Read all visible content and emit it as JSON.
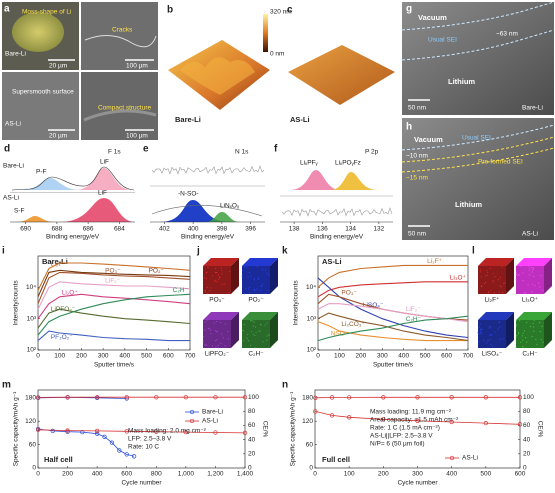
{
  "panels": {
    "a": {
      "label": "a",
      "images": [
        {
          "annotation": "Moss-shape of Li",
          "sample": "Bare-Li",
          "scale_bar": "20 µm"
        },
        {
          "annotation": "Cracks",
          "scale_bar": "100 µm"
        },
        {
          "annotation": "Supersmooth surface",
          "sample": "AS-Li",
          "scale_bar": "20 µm"
        },
        {
          "annotation": "Compact structure",
          "scale_bar": "100 µm"
        }
      ]
    },
    "b": {
      "label": "b",
      "sample": "Bare-Li",
      "colorbar_max": "320 nm",
      "colorbar_min": "0 nm"
    },
    "c": {
      "label": "c",
      "sample": "AS-Li"
    },
    "g": {
      "label": "g",
      "vacuum": "Vacuum",
      "sei": "Usual SEI",
      "thickness": "~63 nm",
      "lithium": "Lithium",
      "scale_bar": "50 nm",
      "sample": "Bare-Li"
    },
    "h": {
      "label": "h",
      "vacuum": "Vacuum",
      "sei": "Usual SEI",
      "thickness_1": "~10 nm",
      "thickness_2": "~15 nm",
      "preformed": "Pre-formed SEI",
      "lithium": "Lithium",
      "scale_bar": "50 nm",
      "sample": "AS-Li"
    },
    "d": {
      "type": "xps",
      "label": "d",
      "region": "F 1s",
      "samples": [
        "Bare-Li",
        "AS-Li"
      ],
      "peaks": [
        "P-F",
        "LiF",
        "LiF",
        "S-F"
      ],
      "xlabel": "Binding energy/eV",
      "xlim": [
        691,
        683
      ],
      "xticks": [
        690,
        688,
        686,
        684
      ]
    },
    "e": {
      "type": "xps",
      "label": "e",
      "region": "N 1s",
      "peaks": [
        "-N-SO-",
        "LiNₓOᵧ"
      ],
      "xlabel": "Binding energy/eV",
      "xlim": [
        403,
        395
      ],
      "xticks": [
        402,
        400,
        398,
        396
      ]
    },
    "f": {
      "type": "xps",
      "label": "f",
      "region": "P 2p",
      "peaks": [
        "LiₓPFᵧ",
        "LiₓPOᵧFz"
      ],
      "xlabel": "Binding energy/eV",
      "xlim": [
        139,
        131
      ],
      "xticks": [
        138,
        136,
        134,
        132
      ]
    },
    "i": {
      "type": "line",
      "label": "i",
      "sample": "Bare-Li",
      "xlabel": "Sputter time/s",
      "ylabel": "Intensity/counts",
      "log_y": true,
      "xlim": [
        0,
        700
      ],
      "xticks": [
        0,
        100,
        200,
        300,
        400,
        500,
        600,
        700
      ],
      "ylim": [
        100,
        100000
      ],
      "yticks": [
        {
          "value": 100,
          "label": "10²"
        },
        {
          "value": 1000,
          "label": "10³"
        },
        {
          "value": 10000,
          "label": "10⁴"
        }
      ],
      "x": [
        0,
        50,
        100,
        200,
        300,
        400,
        500,
        600,
        700
      ],
      "series": [
        {
          "name": "Li₂F⁺",
          "color": "#c8702a",
          "values": [
            8000,
            40000,
            60000,
            60000,
            55000,
            50000,
            45000,
            40000,
            35000
          ]
        },
        {
          "name": "PO₃⁻",
          "color": "#a0522d",
          "values": [
            3000,
            20000,
            30000,
            28000,
            25000,
            23000,
            22000,
            20000,
            18000
          ]
        },
        {
          "name": "PO₂⁻",
          "color": "#7a3a10",
          "values": [
            5000,
            30000,
            35000,
            30000,
            28000,
            26000,
            25000,
            24000,
            22000
          ]
        },
        {
          "name": "LiF₂⁻",
          "color": "#e6a0c8",
          "values": [
            2000,
            10000,
            15000,
            13000,
            12000,
            11000,
            11000,
            10000,
            9000
          ]
        },
        {
          "name": "Li₂O⁺",
          "color": "#d04080",
          "values": [
            1000,
            3000,
            5000,
            6000,
            5000,
            4500,
            4000,
            3500,
            3000
          ]
        },
        {
          "name": "LiPFO₂⁻",
          "color": "#556b2f",
          "values": [
            500,
            1500,
            2000,
            1500,
            1200,
            1000,
            900,
            800,
            700
          ]
        },
        {
          "name": "PF₂O₂⁻",
          "color": "#4060c0",
          "values": [
            200,
            400,
            350,
            300,
            250,
            230,
            220,
            200,
            200
          ]
        },
        {
          "name": "C₂H⁻",
          "color": "#2e8b57",
          "values": [
            300,
            800,
            1200,
            2000,
            3000,
            4000,
            5000,
            5500,
            6000
          ]
        }
      ]
    },
    "j": {
      "label": "j",
      "cubes": [
        {
          "name": "PO₃⁻",
          "color": "#8b1a1a"
        },
        {
          "name": "PO₂⁻",
          "color": "#1a2a9b"
        },
        {
          "name": "LiPFO₂⁻",
          "color": "#6a2a8a"
        },
        {
          "name": "C₂H⁻",
          "color": "#2a6a2a"
        }
      ]
    },
    "k": {
      "type": "line",
      "label": "k",
      "sample": "AS-Li",
      "xlabel": "Sputter time/s",
      "ylabel": "Intensity/counts",
      "log_y": true,
      "xlim": [
        0,
        700
      ],
      "xticks": [
        0,
        100,
        200,
        300,
        400,
        500,
        600,
        700
      ],
      "ylim": [
        100,
        100000
      ],
      "yticks": [
        {
          "value": 100,
          "label": "10²"
        },
        {
          "value": 1000,
          "label": "10³"
        },
        {
          "value": 10000,
          "label": "10⁴"
        }
      ],
      "x": [
        0,
        50,
        100,
        200,
        300,
        400,
        500,
        600,
        700
      ],
      "series": [
        {
          "name": "Li₂F⁺",
          "color": "#c8702a",
          "values": [
            10000,
            20000,
            30000,
            40000,
            45000,
            50000,
            50000,
            50000,
            50000
          ]
        },
        {
          "name": "Li₃O⁺",
          "color": "#d03030",
          "values": [
            5000,
            8000,
            10000,
            12000,
            13000,
            14000,
            15000,
            15000,
            15000
          ]
        },
        {
          "name": "LiSO₄⁻",
          "color": "#3040b0",
          "values": [
            20000,
            10000,
            5000,
            2000,
            1000,
            600,
            400,
            300,
            250
          ]
        },
        {
          "name": "PO₃⁻",
          "color": "#a0522d",
          "values": [
            3000,
            6000,
            5000,
            3000,
            2000,
            1500,
            1200,
            1000,
            900
          ]
        },
        {
          "name": "LiF₂⁻",
          "color": "#e6a0c8",
          "values": [
            2000,
            3000,
            3000,
            2500,
            2000,
            1500,
            1200,
            1000,
            800
          ]
        },
        {
          "name": "NSO⁻",
          "color": "#e89030",
          "values": [
            800,
            600,
            400,
            300,
            250,
            220,
            200,
            200,
            200
          ]
        },
        {
          "name": "Li₂CO₃⁺",
          "color": "#8b5a2b",
          "values": [
            1000,
            1500,
            1200,
            800,
            600,
            400,
            300,
            250,
            200
          ]
        },
        {
          "name": "C₂H⁻",
          "color": "#2e8b57",
          "values": [
            200,
            250,
            300,
            400,
            500,
            700,
            900,
            1000,
            1200
          ]
        }
      ]
    },
    "l": {
      "label": "l",
      "cubes": [
        {
          "name": "Li₂F⁺",
          "color": "#8b1a1a"
        },
        {
          "name": "Li₃O⁺",
          "color": "#c030c0"
        },
        {
          "name": "LiSO₄⁻",
          "color": "#1a2a8b"
        },
        {
          "name": "C₂H⁻",
          "color": "#2a7a2a"
        }
      ]
    },
    "m": {
      "type": "line",
      "label": "m",
      "cell": "Half cell",
      "xlabel": "Cycle number",
      "ylabel": "Specific capacity/mAh g⁻¹",
      "y2label": "CE/%",
      "notes": [
        "Mass loading: 2.0 mg cm⁻²",
        "LFP: 2.5–3.8 V",
        "Rate: 10 C"
      ],
      "xlim": [
        0,
        1400
      ],
      "xticks": [
        0,
        200,
        400,
        600,
        800,
        {
          "value": 1000,
          "label": "1,000"
        },
        {
          "value": 1200,
          "label": "1,200"
        },
        {
          "value": 1400,
          "label": "1,400"
        }
      ],
      "ylim": [
        0,
        200
      ],
      "yticks": [
        0,
        60,
        120,
        180
      ],
      "y2lim": [
        0,
        110
      ],
      "y2ticks": [
        0,
        20,
        40,
        60,
        80,
        100
      ],
      "series": [
        {
          "name": "Bare-Li",
          "color": "#2a4fd8",
          "x": [
            1,
            100,
            200,
            300,
            400,
            450,
            500,
            550,
            600,
            650
          ],
          "values": [
            100,
            95,
            93,
            92,
            88,
            80,
            65,
            45,
            35,
            30
          ]
        },
        {
          "name": "AS-Li",
          "color": "#d83030",
          "x": [
            1,
            200,
            400,
            600,
            800,
            1000,
            1200,
            1400
          ],
          "values": [
            98,
            96,
            95,
            94,
            93,
            92,
            91,
            90
          ]
        },
        {
          "name": "Bare-Li",
          "color": "#2a4fd8",
          "axis": "y2",
          "x": [
            1,
            200,
            400,
            600
          ],
          "values": [
            99,
            99.5,
            99,
            98
          ]
        },
        {
          "name": "AS-Li",
          "color": "#d83030",
          "axis": "y2",
          "x": [
            1,
            200,
            400,
            600,
            800,
            1000,
            1200,
            1400
          ],
          "values": [
            99.5,
            99.8,
            99.8,
            99.8,
            99.8,
            99.8,
            99.8,
            99.8
          ]
        }
      ]
    },
    "n": {
      "type": "line",
      "label": "n",
      "cell": "Full cell",
      "xlabel": "Cycle number",
      "ylabel": "Specific capacity/mAh g⁻¹",
      "y2label": "CE/%",
      "notes": [
        "Mass loading: 11.9 mg cm⁻²",
        "Areal capacity: ≈1.5 mAh cm⁻²",
        "Rate: 1 C (1.5 mA cm⁻²)",
        "AS-Li||LFP: 2.5–3.8 V",
        "N/P= 6 (50 µm foil)"
      ],
      "xlim": [
        0,
        600
      ],
      "xticks": [
        0,
        100,
        200,
        300,
        400,
        500,
        600
      ],
      "ylim": [
        0,
        200
      ],
      "yticks": [
        0,
        60,
        120,
        180
      ],
      "y2lim": [
        0,
        110
      ],
      "y2ticks": [
        0,
        20,
        40,
        60,
        80,
        100
      ],
      "series": [
        {
          "name": "AS-Li",
          "color": "#d83030",
          "x": [
            1,
            50,
            100,
            200,
            300,
            400,
            500,
            600
          ],
          "values": [
            145,
            135,
            130,
            125,
            121,
            118,
            115,
            112
          ]
        },
        {
          "name": "AS-Li",
          "color": "#d83030",
          "axis": "y2",
          "x": [
            1,
            50,
            100,
            200,
            300,
            400,
            500,
            600
          ],
          "values": [
            99,
            99.5,
            99.6,
            99.7,
            99.7,
            99.7,
            99.7,
            99.7
          ]
        }
      ]
    }
  }
}
